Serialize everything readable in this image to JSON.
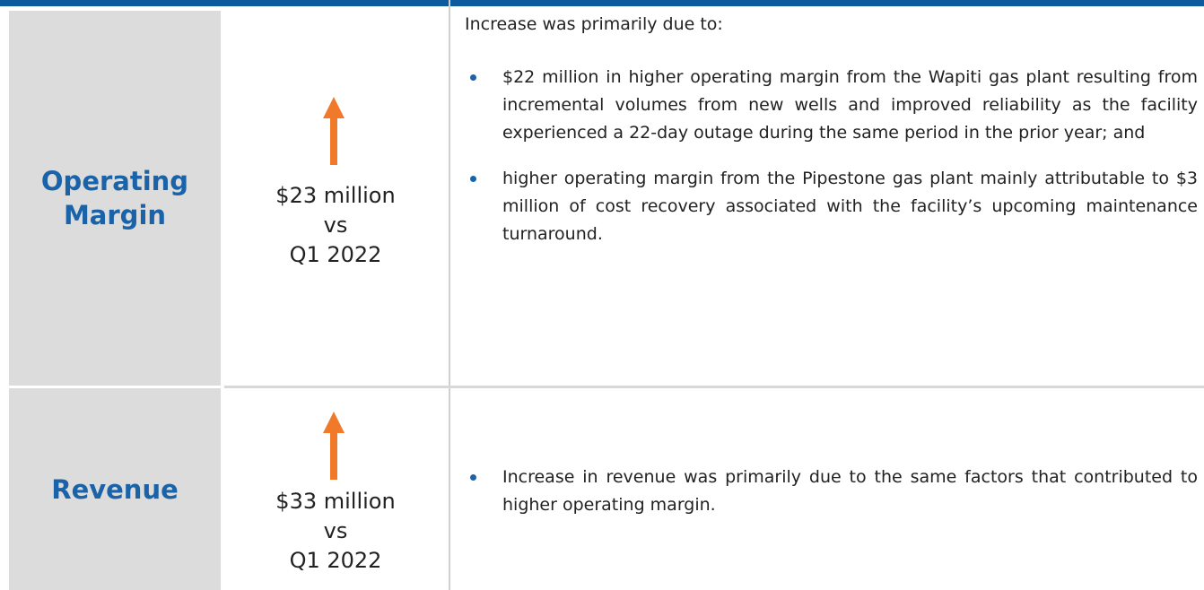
{
  "rows": [
    {
      "label": [
        "Operating",
        "Margin"
      ],
      "amount": [
        "$23 million",
        "vs",
        "Q1 2022"
      ],
      "intro": "Increase was primarily due to:",
      "bullets": [
        "$22 million in higher operating margin from the Wapiti gas plant resulting from incremental volumes from new wells and improved reliability as the facility experienced a 22-day outage during the same period in the prior year; and",
        "higher operating margin from the Pipestone gas plant mainly attributable to $3 million of cost recovery associated with the facility’s upcoming maintenance turnaround."
      ]
    },
    {
      "label": [
        "Revenue"
      ],
      "amount": [
        "$33 million",
        "vs",
        "Q1 2022"
      ],
      "bullets": [
        "Increase in revenue was primarily due to the same factors that contributed to higher operating margin."
      ]
    }
  ]
}
